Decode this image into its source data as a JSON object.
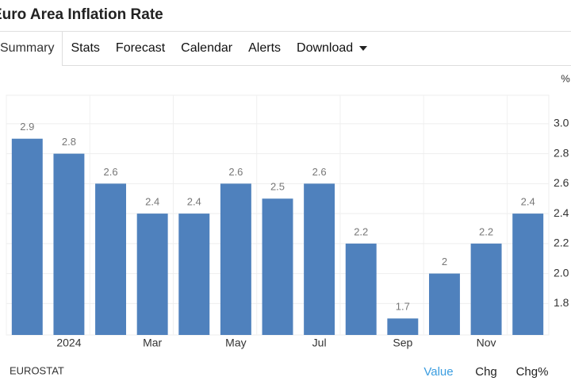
{
  "header": {
    "title": "Euro Area Inflation Rate"
  },
  "tabs": [
    "Summary",
    "Stats",
    "Forecast",
    "Calendar",
    "Alerts",
    "Download"
  ],
  "chart_data": {
    "type": "bar",
    "unit": "%",
    "categories": [
      null,
      "2024",
      null,
      "Mar",
      null,
      "May",
      null,
      "Jul",
      null,
      "Sep",
      null,
      "Nov",
      null
    ],
    "values": [
      2.9,
      2.8,
      2.6,
      2.4,
      2.4,
      2.6,
      2.5,
      2.6,
      2.2,
      1.7,
      2.0,
      2.2,
      2.4
    ],
    "color": "#4f81bd",
    "ylim": [
      1.59,
      3.19
    ],
    "yticks": [
      {
        "value": 3.0,
        "label": "3.0"
      },
      2.8,
      2.6,
      2.4,
      2.2,
      {
        "value": 2.0,
        "label": "2.0"
      },
      1.8
    ],
    "grid": true,
    "source": "EUROSTAT"
  },
  "footer": {
    "options": [
      "Value",
      "Chg",
      "Chg%"
    ]
  }
}
